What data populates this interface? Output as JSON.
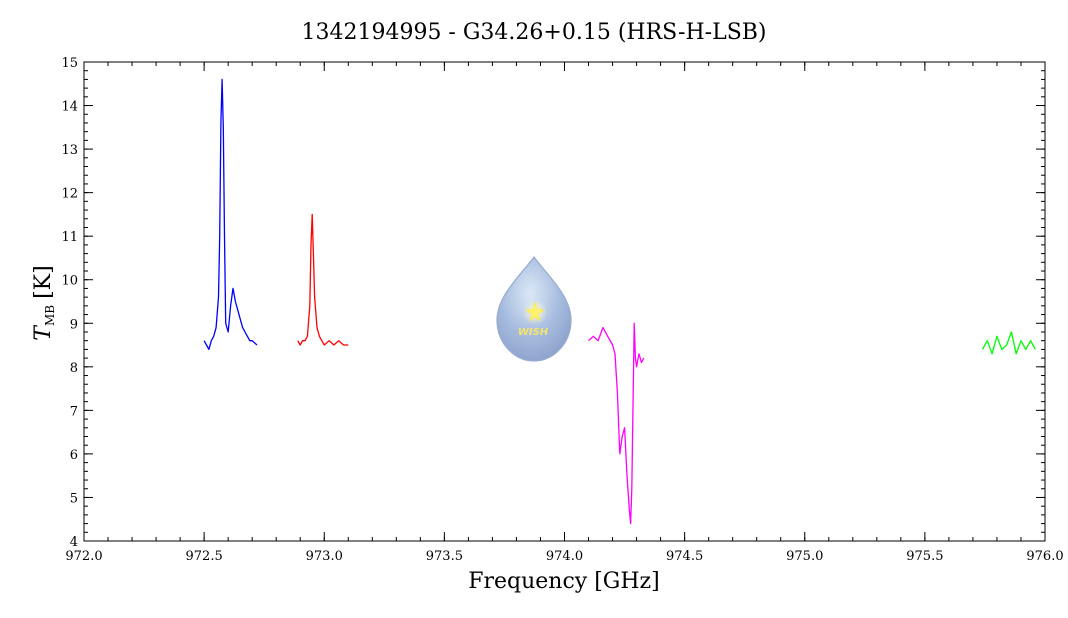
{
  "chart_data": {
    "type": "line",
    "title": "1342194995 - G34.26+0.15 (HRS-H-LSB)",
    "xlabel": "Frequency [GHz]",
    "ylabel_main": "T",
    "ylabel_sub": "MB",
    "ylabel_unit": "[K]",
    "xlim": [
      972.0,
      976.0
    ],
    "ylim": [
      4,
      15
    ],
    "x_ticks": [
      972.0,
      972.5,
      973.0,
      973.5,
      974.0,
      974.5,
      975.0,
      975.5,
      976.0
    ],
    "x_tick_labels": [
      "972.0",
      "972.5",
      "973.0",
      "973.5",
      "974.0",
      "974.5",
      "975.0",
      "975.5",
      "976.0"
    ],
    "y_ticks": [
      4,
      5,
      6,
      7,
      8,
      9,
      10,
      11,
      12,
      13,
      14,
      15
    ],
    "y_tick_labels": [
      "4",
      "5",
      "6",
      "7",
      "8",
      "9",
      "10",
      "11",
      "12",
      "13",
      "14",
      "15"
    ],
    "x_minor_step": 0.1,
    "y_minor_step": 0.2,
    "grid": false,
    "logo_text": "WISH",
    "series": [
      {
        "color": "#0000ff",
        "x": [
          972.5,
          972.51,
          972.52,
          972.53,
          972.54,
          972.55,
          972.56,
          972.565,
          972.57,
          972.575,
          972.58,
          972.585,
          972.59,
          972.6,
          972.61,
          972.62,
          972.63,
          972.64,
          972.65,
          972.66,
          972.67,
          972.68,
          972.69,
          972.7,
          972.72
        ],
        "y": [
          8.6,
          8.5,
          8.4,
          8.6,
          8.7,
          8.9,
          9.6,
          11.0,
          13.6,
          14.6,
          13.5,
          11.0,
          9.0,
          8.8,
          9.4,
          9.8,
          9.5,
          9.3,
          9.1,
          8.9,
          8.8,
          8.7,
          8.6,
          8.6,
          8.5
        ]
      },
      {
        "color": "#ff0000",
        "x": [
          972.89,
          972.9,
          972.91,
          972.92,
          972.93,
          972.94,
          972.945,
          972.95,
          972.955,
          972.96,
          972.97,
          972.98,
          972.99,
          973.0,
          973.02,
          973.04,
          973.06,
          973.08,
          973.1
        ],
        "y": [
          8.6,
          8.5,
          8.6,
          8.6,
          8.7,
          9.4,
          10.8,
          11.5,
          10.6,
          9.6,
          8.9,
          8.7,
          8.6,
          8.5,
          8.6,
          8.5,
          8.6,
          8.5,
          8.5
        ]
      },
      {
        "color": "#ff00ff",
        "x": [
          974.1,
          974.12,
          974.14,
          974.16,
          974.18,
          974.2,
          974.21,
          974.22,
          974.23,
          974.24,
          974.25,
          974.26,
          974.27,
          974.275,
          974.28,
          974.29,
          974.295,
          974.3,
          974.31,
          974.32,
          974.33
        ],
        "y": [
          8.6,
          8.7,
          8.6,
          8.9,
          8.7,
          8.5,
          8.3,
          7.4,
          6.0,
          6.4,
          6.6,
          5.5,
          4.7,
          4.4,
          5.2,
          9.0,
          8.2,
          8.0,
          8.3,
          8.1,
          8.2
        ]
      },
      {
        "color": "#00ff00",
        "x": [
          975.74,
          975.76,
          975.78,
          975.8,
          975.82,
          975.84,
          975.86,
          975.88,
          975.9,
          975.92,
          975.94,
          975.96
        ],
        "y": [
          8.4,
          8.6,
          8.3,
          8.7,
          8.4,
          8.5,
          8.8,
          8.3,
          8.6,
          8.4,
          8.6,
          8.4
        ]
      }
    ]
  }
}
